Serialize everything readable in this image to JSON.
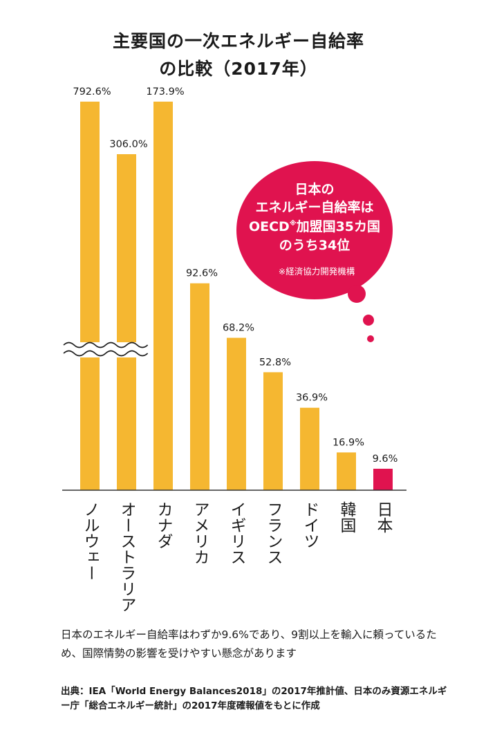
{
  "title_lines": [
    "主要国の一次エネルギー自給率",
    "の比較（2017年）"
  ],
  "chart_data": {
    "type": "bar",
    "categories": [
      "ノルウェー",
      "オーストラリア",
      "カナダ",
      "アメリカ",
      "イギリス",
      "フランス",
      "ドイツ",
      "韓国",
      "日本"
    ],
    "values": [
      792.6,
      306.0,
      173.9,
      92.6,
      68.2,
      52.8,
      36.9,
      16.9,
      9.6
    ],
    "value_labels": [
      "792.6%",
      "306.0%",
      "173.9%",
      "92.6%",
      "68.2%",
      "52.8%",
      "36.9%",
      "16.9%",
      "9.6%"
    ],
    "axis_break": true,
    "colors": {
      "bar": "#F5B731",
      "highlight": "#E0134F"
    },
    "highlight_category": "日本"
  },
  "callout": {
    "lines": [
      "日本の",
      "エネルギー自給率は",
      "OECD",
      "加盟国35カ国",
      "のうち34位"
    ],
    "superscript": "※",
    "footnote": "※経済協力開発機構",
    "color": "#E0134F"
  },
  "footer": {
    "note": "日本のエネルギー自給率はわずか9.6%であり、9割以上を輸入に頼っているため、国際情勢の影響を受けやすい懸念があります",
    "source": "出典：IEA「World Energy Balances2018」の2017年推計値、日本のみ資源エネルギー庁「総合エネルギー統計」の2017年度確報値をもとに作成"
  }
}
